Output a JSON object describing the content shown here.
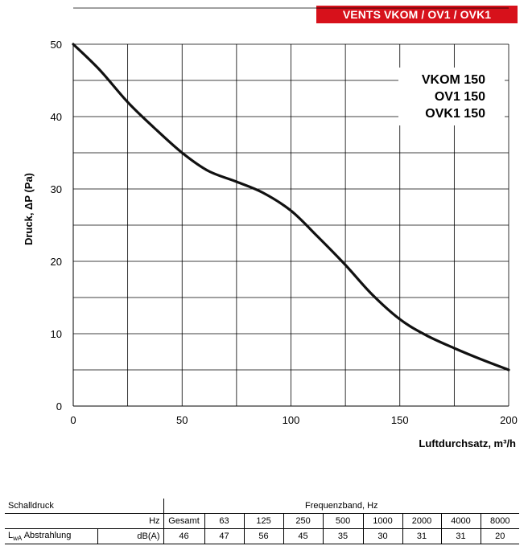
{
  "header": {
    "badge": "VENTS VKOM / OV1 / OVK1"
  },
  "chart_data": {
    "type": "line",
    "ylabel": "Druck, ΔP (Pa)",
    "xlabel": "Luftdurchsatz, m³/h",
    "xlim": [
      0,
      200
    ],
    "ylim": [
      0,
      50
    ],
    "x_ticks": [
      0,
      50,
      100,
      150,
      200
    ],
    "y_ticks": [
      0,
      10,
      20,
      30,
      40,
      50
    ],
    "grid": true,
    "model_labels": [
      "VKOM 150",
      "OV1 150",
      "OVK1 150"
    ],
    "series": [
      {
        "x": [
          0,
          12,
          25,
          37,
          50,
          62,
          75,
          87,
          100,
          112,
          125,
          137,
          150,
          162,
          175,
          187,
          200
        ],
        "y": [
          50,
          46.5,
          42,
          38.5,
          35,
          32.5,
          31,
          29.5,
          27,
          23.5,
          19.5,
          15.5,
          12,
          9.8,
          8,
          6.5,
          5
        ],
        "color": "#111111"
      }
    ]
  },
  "sound_table": {
    "title": "Schalldruck",
    "band_header": "Frequenzband, Hz",
    "hz_label": "Hz",
    "freq_headers": [
      "Gesamt",
      "63",
      "125",
      "250",
      "500",
      "1000",
      "2000",
      "4000",
      "8000"
    ],
    "row_label_main": "L",
    "row_label_sub": "wA",
    "row_label_rest": " Abstrahlung",
    "unit": "dB(A)",
    "values": [
      "46",
      "47",
      "56",
      "45",
      "35",
      "30",
      "31",
      "31",
      "20"
    ]
  }
}
